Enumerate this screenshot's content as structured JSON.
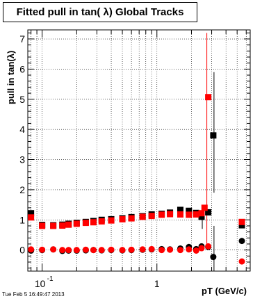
{
  "chart_data": {
    "type": "scatter",
    "title": "Fitted pull in tan( λ)  Global Tracks",
    "xlabel": "pT (GeV/c)",
    "ylabel": "pull in tan(λ)",
    "x_scale": "log",
    "xlim": [
      0.075,
      6.5
    ],
    "ylim": [
      -0.7,
      7.3
    ],
    "y_ticks": [
      "0",
      "1",
      "2",
      "3",
      "4",
      "5",
      "6",
      "7"
    ],
    "x_ticks": [
      {
        "value": 0.1,
        "base": "10",
        "exp": "-1"
      },
      {
        "value": 1,
        "base": "1",
        "exp": ""
      }
    ],
    "grid": true,
    "legend": "none",
    "timestamp": "Tue Feb  5 16:49:47 2013",
    "colors": {
      "series_black": "#000000",
      "series_red": "#ff0000"
    },
    "series": [
      {
        "marker": "square",
        "color": "#000000",
        "points": [
          [
            0.08,
            1.22
          ],
          [
            0.1,
            0.83
          ],
          [
            0.125,
            0.82
          ],
          [
            0.15,
            0.84
          ],
          [
            0.17,
            0.87
          ],
          [
            0.2,
            0.9
          ],
          [
            0.24,
            0.93
          ],
          [
            0.28,
            0.96
          ],
          [
            0.33,
            1.0
          ],
          [
            0.4,
            1.02
          ],
          [
            0.5,
            1.05
          ],
          [
            0.6,
            1.09
          ],
          [
            0.75,
            1.12
          ],
          [
            0.9,
            1.18
          ],
          [
            1.1,
            1.2
          ],
          [
            1.3,
            1.24
          ],
          [
            1.6,
            1.33
          ],
          [
            1.9,
            1.3
          ],
          [
            2.2,
            1.23
          ],
          [
            2.45,
            1.1
          ],
          [
            2.8,
            1.25
          ],
          [
            3.1,
            3.8
          ],
          [
            5.5,
            0.82
          ]
        ],
        "error_bars": [
          {
            "x": 2.45,
            "low": 0.7,
            "high": 1.5
          },
          {
            "x": 3.1,
            "low": 1.9,
            "high": 5.9
          }
        ]
      },
      {
        "marker": "square",
        "color": "#ff0000",
        "points": [
          [
            0.08,
            1.08
          ],
          [
            0.1,
            0.8
          ],
          [
            0.125,
            0.8
          ],
          [
            0.15,
            0.81
          ],
          [
            0.17,
            0.84
          ],
          [
            0.2,
            0.87
          ],
          [
            0.24,
            0.9
          ],
          [
            0.28,
            0.92
          ],
          [
            0.33,
            0.95
          ],
          [
            0.4,
            0.98
          ],
          [
            0.5,
            1.02
          ],
          [
            0.6,
            1.05
          ],
          [
            0.75,
            1.1
          ],
          [
            0.9,
            1.13
          ],
          [
            1.1,
            1.17
          ],
          [
            1.3,
            1.19
          ],
          [
            1.6,
            1.18
          ],
          [
            1.9,
            1.17
          ],
          [
            2.2,
            1.18
          ],
          [
            2.45,
            1.22
          ],
          [
            2.6,
            1.4
          ],
          [
            2.8,
            5.07
          ],
          [
            5.5,
            0.93
          ]
        ],
        "error_bars": [
          {
            "x": 2.8,
            "low": 0.2,
            "high": 7.2
          }
        ]
      },
      {
        "marker": "circle",
        "color": "#000000",
        "points": [
          [
            0.08,
            -0.02
          ],
          [
            0.1,
            0.0
          ],
          [
            0.125,
            0.02
          ],
          [
            0.15,
            -0.03
          ],
          [
            0.17,
            -0.02
          ],
          [
            0.2,
            -0.02
          ],
          [
            0.24,
            -0.01
          ],
          [
            0.28,
            0.0
          ],
          [
            0.33,
            -0.01
          ],
          [
            0.4,
            0.0
          ],
          [
            0.5,
            -0.01
          ],
          [
            0.6,
            0.0
          ],
          [
            0.75,
            0.01
          ],
          [
            0.9,
            0.02
          ],
          [
            1.1,
            0.03
          ],
          [
            1.3,
            0.02
          ],
          [
            1.6,
            0.05
          ],
          [
            1.9,
            0.1
          ],
          [
            2.2,
            0.03
          ],
          [
            2.45,
            0.12
          ],
          [
            2.8,
            0.1
          ],
          [
            3.1,
            -0.23
          ],
          [
            5.5,
            0.3
          ]
        ],
        "error_bars": [
          {
            "x": 3.1,
            "low": -0.7,
            "high": 0.8
          }
        ]
      },
      {
        "marker": "circle",
        "color": "#ff0000",
        "points": [
          [
            0.08,
            0.02
          ],
          [
            0.1,
            0.01
          ],
          [
            0.125,
            0.02
          ],
          [
            0.15,
            0.0
          ],
          [
            0.17,
            0.0
          ],
          [
            0.2,
            0.0
          ],
          [
            0.24,
            0.01
          ],
          [
            0.28,
            0.0
          ],
          [
            0.33,
            0.0
          ],
          [
            0.4,
            0.01
          ],
          [
            0.5,
            0.0
          ],
          [
            0.6,
            0.01
          ],
          [
            0.75,
            0.02
          ],
          [
            0.9,
            0.03
          ],
          [
            1.1,
            0.0
          ],
          [
            1.3,
            0.01
          ],
          [
            1.6,
            0.0
          ],
          [
            1.9,
            0.02
          ],
          [
            2.2,
            -0.02
          ],
          [
            2.45,
            0.06
          ],
          [
            2.8,
            0.12
          ],
          [
            5.5,
            -0.38
          ]
        ],
        "error_bars": []
      }
    ]
  }
}
